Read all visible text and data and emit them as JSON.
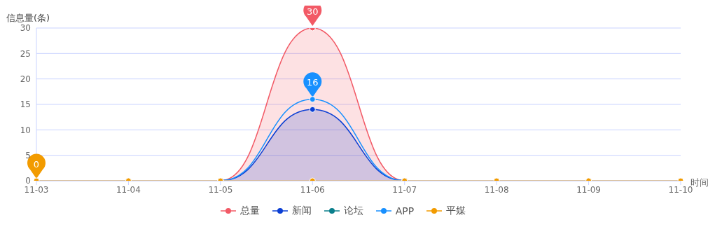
{
  "chart_data": {
    "type": "line",
    "ylabel": "信息量(条)",
    "xlabel": "时间",
    "categories": [
      "11-03",
      "11-04",
      "11-05",
      "11-06",
      "11-07",
      "11-08",
      "11-09",
      "11-10"
    ],
    "series": [
      {
        "name": "总量",
        "type": "area",
        "color": "#f25a66",
        "values": [
          null,
          null,
          0,
          30,
          0,
          null,
          null,
          null
        ]
      },
      {
        "name": "新闻",
        "type": "area",
        "color": "#0b3fd4",
        "values": [
          null,
          null,
          0,
          14,
          0,
          null,
          null,
          null
        ]
      },
      {
        "name": "论坛",
        "color": "#0a7f8c",
        "values": [
          null,
          null,
          null,
          null,
          null,
          null,
          null,
          null
        ]
      },
      {
        "color": "#f06a10",
        "values": [
          null,
          null,
          null,
          null,
          null,
          null,
          null,
          null
        ]
      },
      {
        "color": "#2dbd70",
        "values": [
          null,
          null,
          null,
          null,
          null,
          null,
          null,
          null
        ]
      },
      {
        "name": "APP",
        "color": "#1890ff",
        "values": [
          null,
          null,
          0,
          16,
          0,
          null,
          null,
          null
        ]
      },
      {
        "name": "平媒",
        "color": "#f29b00",
        "values": [
          0,
          0,
          0,
          0,
          0,
          0,
          0,
          0
        ]
      }
    ],
    "annotations": [
      {
        "text": "30",
        "x": "11-06",
        "y": 30
      },
      {
        "text": "16",
        "x": "11-06",
        "y": 16
      },
      {
        "text": "0",
        "x": "11-03",
        "y": 0
      }
    ],
    "ylim": [
      0,
      30
    ],
    "yticks": [
      0,
      5,
      10,
      15,
      20,
      25,
      30
    ],
    "grid": "y",
    "legend": "bottom",
    "marker": "circle",
    "line_style": "solid"
  }
}
